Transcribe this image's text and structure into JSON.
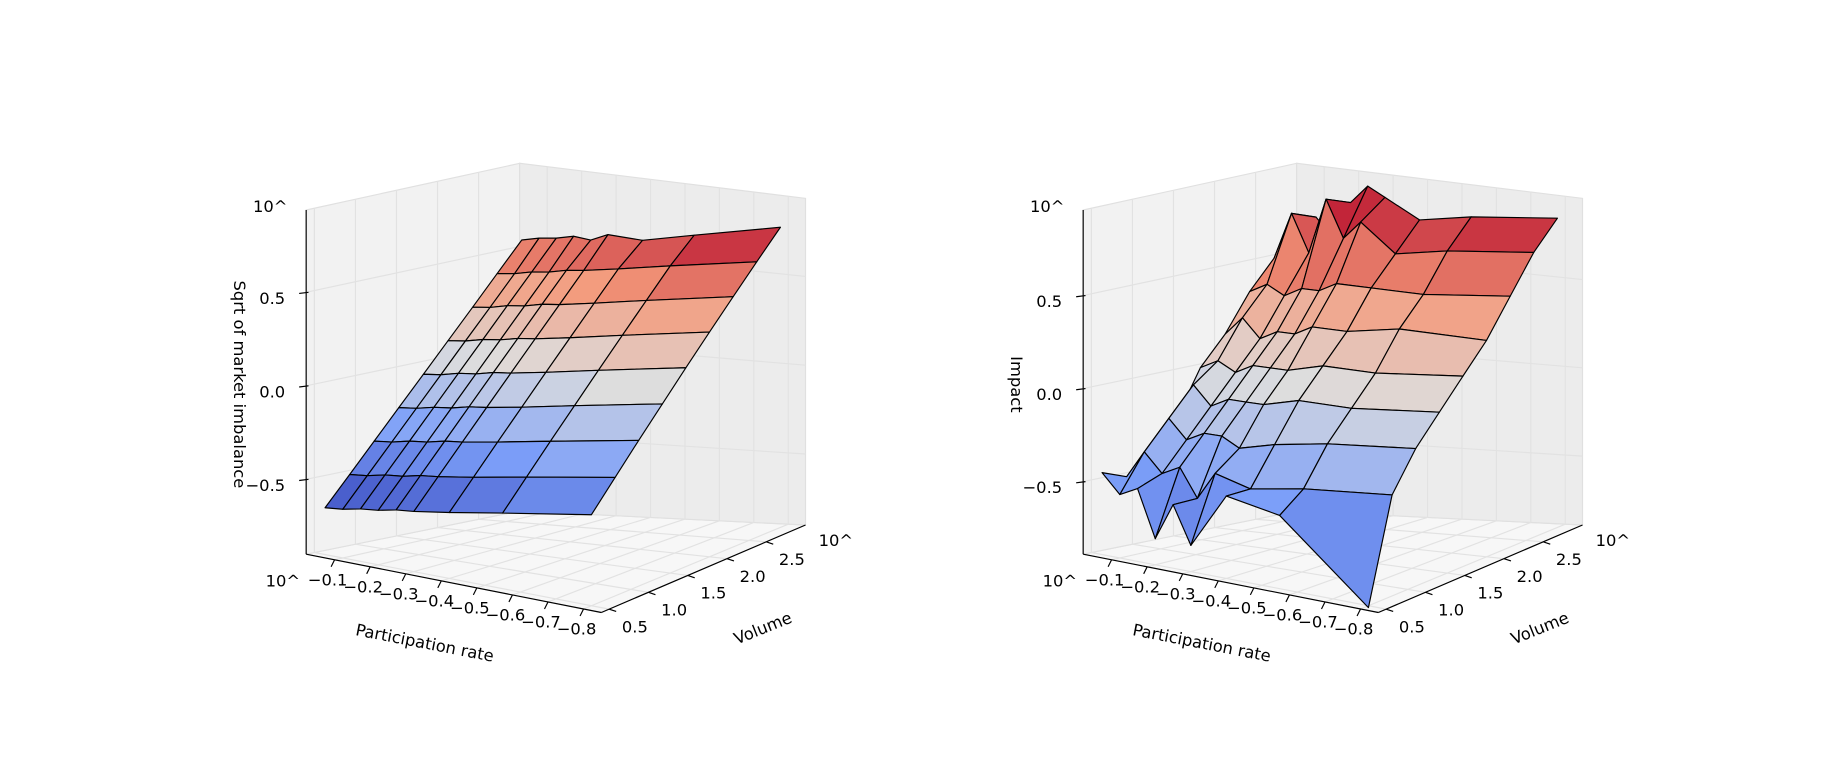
{
  "chart_data": [
    {
      "type": "surface3d",
      "colormap": "coolwarm",
      "xlabel": "Participation rate",
      "ylabel": "Volume",
      "zlabel": "Sqrt of market imbalance",
      "x_offset": "10^",
      "y_offset": "10^",
      "z_offset": "10^",
      "x": [
        -0.05,
        -0.1,
        -0.15,
        -0.2,
        -0.25,
        -0.3,
        -0.4,
        -0.55,
        -0.8
      ],
      "y": [
        0.5,
        0.8,
        1.1,
        1.4,
        1.7,
        2.0,
        2.3,
        2.6,
        2.9
      ],
      "z": [
        [
          -0.65,
          -0.64,
          -0.62,
          -0.61,
          -0.59,
          -0.58,
          -0.55,
          -0.5,
          -0.42
        ],
        [
          -0.5,
          -0.49,
          -0.47,
          -0.46,
          -0.44,
          -0.43,
          -0.4,
          -0.35,
          -0.27
        ],
        [
          -0.35,
          -0.34,
          -0.32,
          -0.31,
          -0.29,
          -0.28,
          -0.25,
          -0.2,
          -0.12
        ],
        [
          -0.2,
          -0.19,
          -0.17,
          -0.16,
          -0.14,
          -0.13,
          -0.1,
          -0.05,
          0.03
        ],
        [
          -0.05,
          -0.04,
          -0.02,
          -0.01,
          0.01,
          0.02,
          0.05,
          0.1,
          0.18
        ],
        [
          0.1,
          0.11,
          0.13,
          0.14,
          0.16,
          0.17,
          0.2,
          0.25,
          0.33
        ],
        [
          0.25,
          0.26,
          0.28,
          0.29,
          0.31,
          0.32,
          0.35,
          0.4,
          0.48
        ],
        [
          0.4,
          0.41,
          0.43,
          0.44,
          0.46,
          0.47,
          0.5,
          0.55,
          0.63
        ],
        [
          0.55,
          0.57,
          0.58,
          0.6,
          0.59,
          0.63,
          0.62,
          0.68,
          0.78
        ]
      ],
      "xlim": [
        -0.02,
        -0.85
      ],
      "ylim": [
        0.4,
        3.0
      ],
      "zlim": [
        -0.9,
        0.94
      ],
      "xticks": [
        {
          "value": -0.1,
          "label": "−0.1"
        },
        {
          "value": -0.2,
          "label": "−0.2"
        },
        {
          "value": -0.3,
          "label": "−0.3"
        },
        {
          "value": -0.4,
          "label": "−0.4"
        },
        {
          "value": -0.5,
          "label": "−0.5"
        },
        {
          "value": -0.6,
          "label": "−0.6"
        },
        {
          "value": -0.7,
          "label": "−0.7"
        },
        {
          "value": -0.8,
          "label": "−0.8"
        }
      ],
      "yticks": [
        0.5,
        {
          "value": 1.0,
          "label": "1.0"
        },
        1.5,
        {
          "value": 2.0,
          "label": "2.0"
        },
        2.5
      ],
      "zticks": [
        {
          "value": -0.5,
          "label": "−0.5"
        },
        {
          "value": 0.0,
          "label": "0.0"
        },
        0.5
      ],
      "grid": true
    },
    {
      "type": "surface3d",
      "colormap": "coolwarm",
      "xlabel": "Participation rate",
      "ylabel": "Volume",
      "zlabel": "Impact",
      "x_offset": "10^",
      "y_offset": "10^",
      "z_offset": "10^",
      "x": [
        -0.05,
        -0.1,
        -0.15,
        -0.2,
        -0.25,
        -0.3,
        -0.4,
        -0.55,
        -0.8
      ],
      "y": [
        0.5,
        0.8,
        1.1,
        1.4,
        1.7,
        2.0,
        2.3,
        2.6,
        2.9
      ],
      "z": [
        [
          -0.45,
          -0.55,
          -0.5,
          -0.75,
          -0.55,
          -0.75,
          -0.45,
          -0.5,
          -0.9
        ],
        [
          -0.5,
          -0.35,
          -0.45,
          -0.4,
          -0.55,
          -0.4,
          -0.45,
          -0.4,
          -0.35
        ],
        [
          -0.4,
          -0.2,
          -0.3,
          -0.25,
          -0.25,
          -0.3,
          -0.25,
          -0.2,
          -0.15
        ],
        [
          -0.25,
          -0.05,
          -0.15,
          -0.1,
          -0.1,
          -0.1,
          -0.05,
          -0.05,
          0.0
        ],
        [
          0.0,
          0.05,
          0.0,
          0.05,
          0.05,
          0.05,
          0.1,
          0.1,
          0.15
        ],
        [
          0.15,
          0.25,
          0.15,
          0.2,
          0.2,
          0.25,
          0.25,
          0.3,
          0.3
        ],
        [
          0.35,
          0.4,
          0.35,
          0.4,
          0.4,
          0.45,
          0.45,
          0.45,
          0.5
        ],
        [
          0.5,
          0.75,
          0.55,
          0.85,
          0.65,
          0.75,
          0.6,
          0.65,
          0.7
        ],
        [
          0.65,
          0.7,
          0.6,
          0.8,
          0.9,
          0.85,
          0.75,
          0.8,
          0.85
        ]
      ],
      "xlim": [
        -0.02,
        -0.85
      ],
      "ylim": [
        0.4,
        3.0
      ],
      "zlim": [
        -0.89,
        0.96
      ],
      "xticks": [
        {
          "value": -0.1,
          "label": "−0.1"
        },
        {
          "value": -0.2,
          "label": "−0.2"
        },
        {
          "value": -0.3,
          "label": "−0.3"
        },
        {
          "value": -0.4,
          "label": "−0.4"
        },
        {
          "value": -0.5,
          "label": "−0.5"
        },
        {
          "value": -0.6,
          "label": "−0.6"
        },
        {
          "value": -0.7,
          "label": "−0.7"
        },
        {
          "value": -0.8,
          "label": "−0.8"
        }
      ],
      "yticks": [
        0.5,
        {
          "value": 1.0,
          "label": "1.0"
        },
        1.5,
        {
          "value": 2.0,
          "label": "2.0"
        },
        2.5
      ],
      "zticks": [
        {
          "value": -0.5,
          "label": "−0.5"
        },
        {
          "value": 0.0,
          "label": "0.0"
        },
        0.5
      ],
      "grid": true
    }
  ]
}
